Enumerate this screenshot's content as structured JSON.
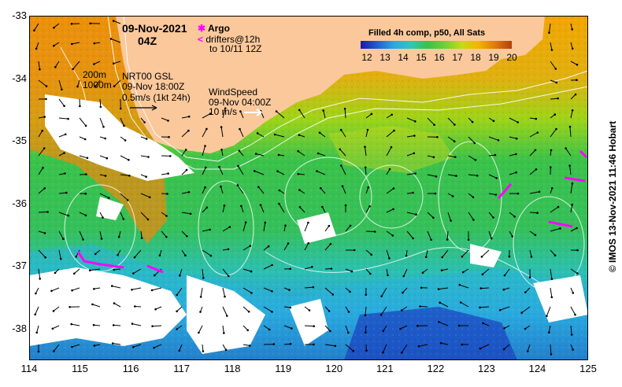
{
  "header": {
    "date": "09-Nov-2021",
    "time": "04Z",
    "argo_label": "Argo",
    "drifter_label_line1": "drifters@12h",
    "drifter_label_line2": "to 10/11 12Z"
  },
  "colorbar": {
    "title": "Filled 4h comp, p50, All Sats",
    "labels": [
      "12",
      "13",
      "14",
      "15",
      "16",
      "17",
      "18",
      "19",
      "20"
    ],
    "colors": [
      "#1a1aa0",
      "#1f5fd8",
      "#2aa8e8",
      "#2cc9b6",
      "#39c24a",
      "#6ad23a",
      "#c8d81c",
      "#f2b500",
      "#e07a10",
      "#b24008"
    ]
  },
  "annotations": {
    "isobath_1": "200m",
    "isobath_2": "1000m",
    "current_title": "NRT00 GSL",
    "current_time": "09-Nov 18:00Z",
    "current_scale": "0.5m/s (1kt 24h)",
    "wind_title": "WindSpeed",
    "wind_time": "09-Nov 04:00Z",
    "wind_scale": "10 m/s"
  },
  "credit": "© IMOS 13-Nov-2021 11:46 Hobart",
  "axes": {
    "x_ticks": [
      "114",
      "115",
      "116",
      "117",
      "118",
      "119",
      "120",
      "121",
      "122",
      "123",
      "124",
      "125"
    ],
    "y_ticks": [
      "-33",
      "-34",
      "-35",
      "-36",
      "-37",
      "-38"
    ]
  },
  "colors": {
    "land": "#fac89b",
    "cloud": "#ffffff",
    "drifter": "#ff00ff"
  }
}
